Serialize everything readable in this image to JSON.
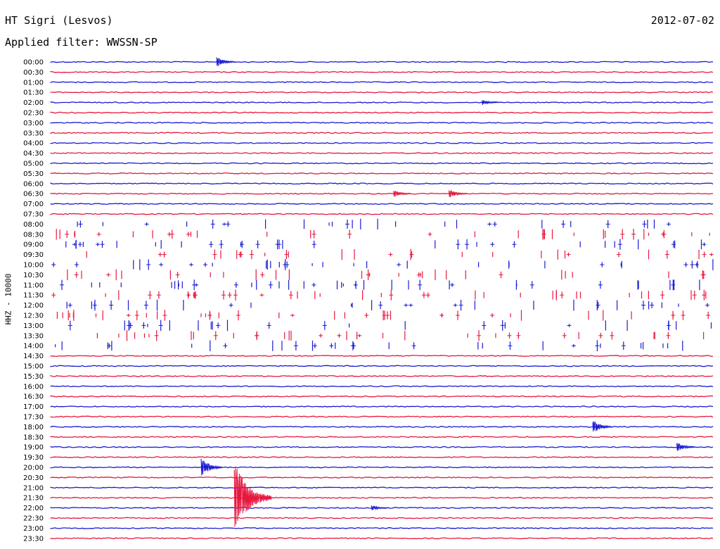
{
  "header": {
    "station": "HT Sigri (Lesvos)",
    "date": "2012-07-02",
    "filter": "Applied filter: WWSSN-SP"
  },
  "colors": {
    "blue": "#1a1ad6",
    "red": "#e8173f"
  },
  "chart_data": {
    "type": "line",
    "ylabel": "HHZ - 10000",
    "row_labels": [
      "00:00",
      "00:30",
      "01:00",
      "01:30",
      "02:00",
      "02:30",
      "03:00",
      "03:30",
      "04:00",
      "04:30",
      "05:00",
      "05:30",
      "06:00",
      "06:30",
      "07:00",
      "07:30",
      "08:00",
      "08:30",
      "09:00",
      "09:30",
      "10:00",
      "10:30",
      "11:00",
      "11:30",
      "12:00",
      "12:30",
      "13:00",
      "13:30",
      "14:00",
      "14:30",
      "15:00",
      "15:30",
      "16:00",
      "16:30",
      "17:00",
      "17:30",
      "18:00",
      "18:30",
      "19:00",
      "19:30",
      "20:00",
      "20:30",
      "21:00",
      "21:30",
      "22:00",
      "22:30",
      "23:00",
      "23:30"
    ],
    "row_colors": [
      "blue",
      "red"
    ],
    "minutes_per_row": 30,
    "events": [
      {
        "row": "00:00",
        "minute": 7.5,
        "amplitude": 8
      },
      {
        "row": "02:00",
        "minute": 19.5,
        "amplitude": 4
      },
      {
        "row": "06:30",
        "minute": 15.5,
        "amplitude": 6
      },
      {
        "row": "06:30",
        "minute": 18.0,
        "amplitude": 7
      },
      {
        "row": "18:00",
        "minute": 24.5,
        "amplitude": 10
      },
      {
        "row": "19:00",
        "minute": 28.3,
        "amplitude": 7
      },
      {
        "row": "20:00",
        "minute": 6.8,
        "amplitude": 14
      },
      {
        "row": "21:30",
        "minute": 8.3,
        "amplitude": 52
      },
      {
        "row": "22:00",
        "minute": 14.5,
        "amplitude": 4
      }
    ],
    "noisy_rows_start": "08:00",
    "noisy_rows_end": "14:00"
  }
}
